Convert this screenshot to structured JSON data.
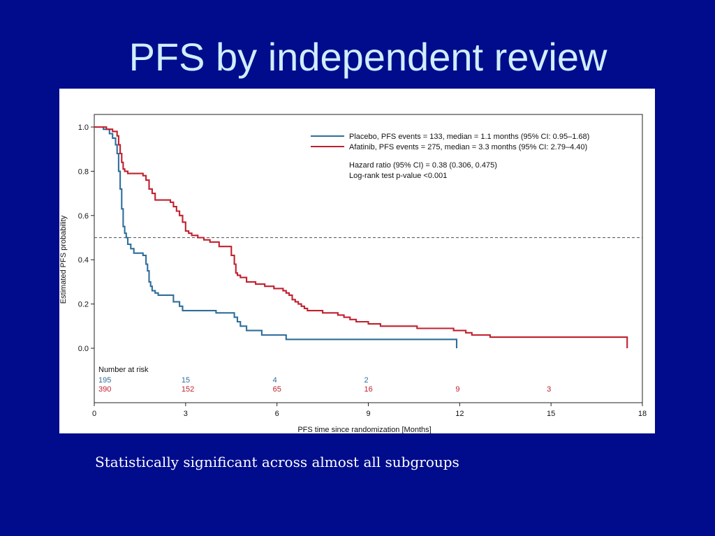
{
  "slide": {
    "title": "PFS by independent review",
    "caption": "Statistically significant across almost all subgroups"
  },
  "chart_data": {
    "type": "line",
    "step": true,
    "xlabel": "PFS time since randomization [Months]",
    "ylabel": "Estimated PFS probability",
    "xlim": [
      0,
      18
    ],
    "ylim": [
      0,
      1
    ],
    "xticks": [
      0,
      3,
      6,
      9,
      12,
      15,
      18
    ],
    "yticks": [
      "0.0",
      "0.2",
      "0.4",
      "0.6",
      "0.8",
      "1.0"
    ],
    "reference_line": {
      "y": 0.5,
      "style": "dashed"
    },
    "legend_position": "top-right",
    "series": [
      {
        "name": "Placebo, PFS events = 133, median = 1.1 months (95% CI: 0.95–1.68)",
        "color": "#2f6e9b",
        "x": [
          0,
          0.3,
          0.5,
          0.6,
          0.7,
          0.75,
          0.8,
          0.85,
          0.9,
          0.95,
          1.0,
          1.05,
          1.1,
          1.2,
          1.3,
          1.5,
          1.6,
          1.7,
          1.75,
          1.8,
          1.85,
          1.9,
          2.0,
          2.1,
          2.3,
          2.5,
          2.6,
          2.8,
          2.9,
          3.0,
          3.5,
          4.0,
          4.5,
          4.6,
          4.7,
          4.8,
          5.0,
          5.5,
          6.0,
          6.3,
          7.0,
          8.0,
          9.0,
          10.0,
          11.0,
          11.9
        ],
        "y": [
          1.0,
          0.99,
          0.97,
          0.95,
          0.92,
          0.88,
          0.8,
          0.72,
          0.63,
          0.55,
          0.52,
          0.5,
          0.47,
          0.45,
          0.43,
          0.43,
          0.42,
          0.38,
          0.35,
          0.3,
          0.28,
          0.26,
          0.25,
          0.24,
          0.24,
          0.24,
          0.21,
          0.19,
          0.17,
          0.17,
          0.17,
          0.16,
          0.16,
          0.14,
          0.12,
          0.1,
          0.08,
          0.06,
          0.06,
          0.04,
          0.04,
          0.04,
          0.04,
          0.04,
          0.04,
          0.04
        ]
      },
      {
        "name": "Afatinib, PFS events = 275, median = 3.3 months (95% CI: 2.79–4.40)",
        "color": "#c0202e",
        "x": [
          0,
          0.4,
          0.6,
          0.75,
          0.8,
          0.85,
          0.9,
          0.95,
          1.0,
          1.1,
          1.3,
          1.6,
          1.7,
          1.8,
          1.9,
          2.0,
          2.2,
          2.5,
          2.6,
          2.7,
          2.8,
          2.9,
          3.0,
          3.1,
          3.2,
          3.4,
          3.6,
          3.8,
          4.1,
          4.3,
          4.4,
          4.5,
          4.6,
          4.65,
          4.7,
          4.8,
          5.0,
          5.3,
          5.6,
          5.9,
          6.2,
          6.3,
          6.4,
          6.5,
          6.6,
          6.7,
          6.8,
          6.9,
          7.0,
          7.5,
          8.0,
          8.2,
          8.4,
          8.6,
          9.0,
          9.4,
          9.8,
          10.2,
          10.6,
          11.8,
          12.0,
          12.2,
          12.4,
          12.6,
          13.0,
          14.0,
          15.0,
          16.0,
          17.0,
          17.5
        ],
        "y": [
          1.0,
          0.99,
          0.98,
          0.96,
          0.92,
          0.88,
          0.84,
          0.81,
          0.8,
          0.79,
          0.79,
          0.78,
          0.76,
          0.72,
          0.7,
          0.67,
          0.67,
          0.66,
          0.64,
          0.62,
          0.6,
          0.57,
          0.53,
          0.52,
          0.51,
          0.5,
          0.49,
          0.48,
          0.46,
          0.46,
          0.46,
          0.42,
          0.38,
          0.34,
          0.33,
          0.32,
          0.3,
          0.29,
          0.28,
          0.27,
          0.26,
          0.25,
          0.24,
          0.22,
          0.21,
          0.2,
          0.19,
          0.18,
          0.17,
          0.16,
          0.15,
          0.14,
          0.13,
          0.12,
          0.11,
          0.1,
          0.1,
          0.1,
          0.09,
          0.08,
          0.08,
          0.07,
          0.06,
          0.06,
          0.05,
          0.05,
          0.05,
          0.05,
          0.05,
          0.05
        ]
      }
    ],
    "annotations": [
      "Hazard ratio (95% CI) = 0.38 (0.306, 0.475)",
      "Log-rank test p-value <0.001"
    ],
    "number_at_risk": {
      "title": "Number at risk",
      "rows": [
        {
          "color": "#2f6e9b",
          "x": [
            0,
            3,
            6,
            9
          ],
          "values": [
            "195",
            "15",
            "4",
            "2"
          ]
        },
        {
          "color": "#c0202e",
          "x": [
            0,
            3,
            6,
            9,
            12,
            15
          ],
          "values": [
            "390",
            "152",
            "65",
            "16",
            "9",
            "3"
          ]
        }
      ]
    }
  }
}
